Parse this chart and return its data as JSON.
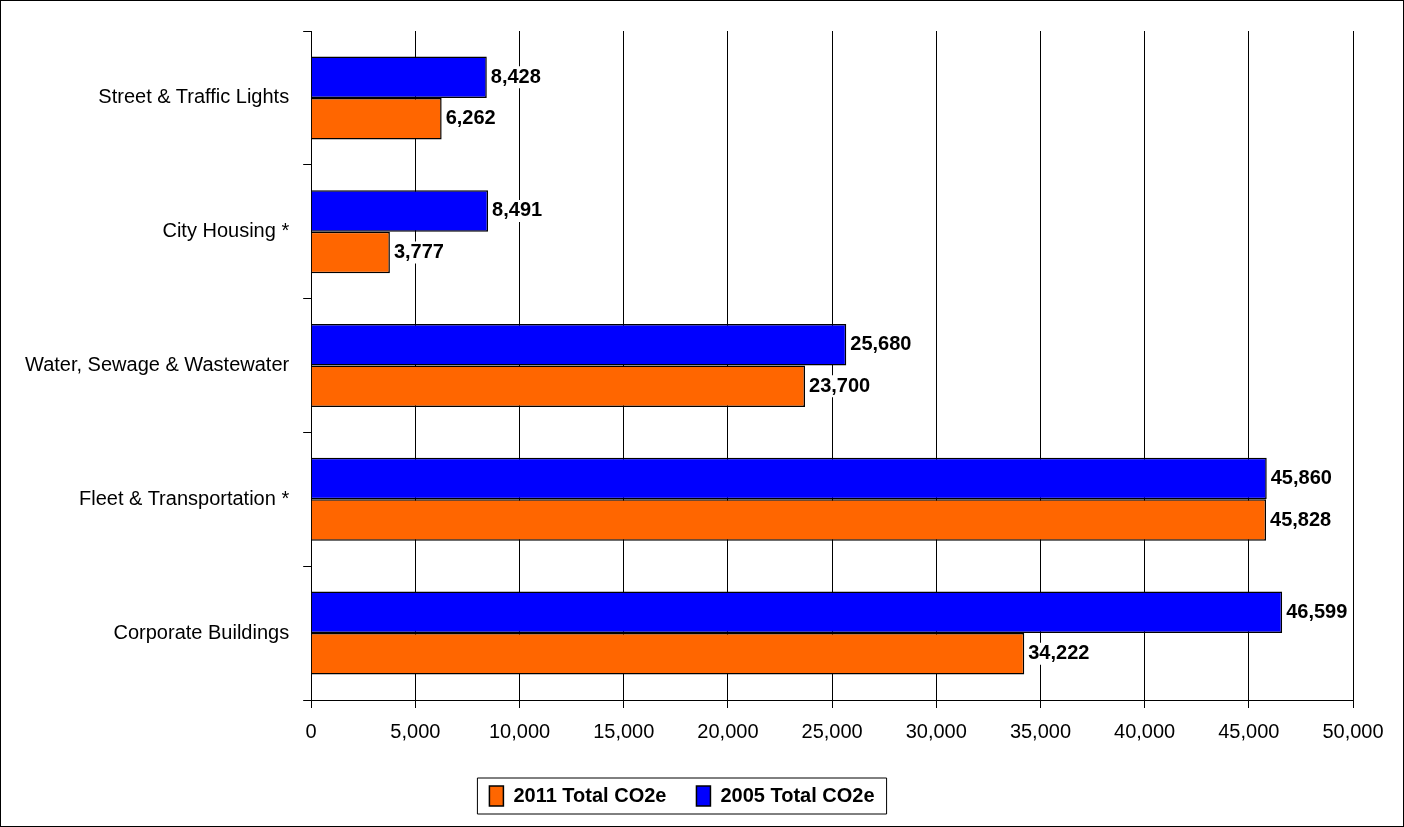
{
  "chart_data": {
    "type": "bar",
    "orientation": "horizontal",
    "categories": [
      "Street & Traffic Lights",
      "City Housing *",
      "Water, Sewage & Wastewater",
      "Fleet & Transportation *",
      "Corporate Buildings"
    ],
    "series": [
      {
        "name": "2011 Total CO2e",
        "color": "#ff6600",
        "values": [
          6262,
          3777,
          23700,
          45828,
          34222
        ],
        "value_labels": [
          "6,262",
          "3,777",
          "23,700",
          "45,828",
          "34,222"
        ]
      },
      {
        "name": "2005 Total CO2e",
        "color": "#0000ff",
        "values": [
          8428,
          8491,
          25680,
          45860,
          46599
        ],
        "value_labels": [
          "8,428",
          "8,491",
          "25,680",
          "45,860",
          "46,599"
        ]
      }
    ],
    "xlim": [
      0,
      50000
    ],
    "xticks": [
      {
        "value": 0,
        "label": "0"
      },
      {
        "value": 5000,
        "label": "5,000"
      },
      {
        "value": 10000,
        "label": "10,000"
      },
      {
        "value": 15000,
        "label": "15,000"
      },
      {
        "value": 20000,
        "label": "20,000"
      },
      {
        "value": 25000,
        "label": "25,000"
      },
      {
        "value": 30000,
        "label": "30,000"
      },
      {
        "value": 35000,
        "label": "35,000"
      },
      {
        "value": 40000,
        "label": "40,000"
      },
      {
        "value": 45000,
        "label": "45,000"
      },
      {
        "value": 50000,
        "label": "50,000"
      }
    ],
    "grid": "x",
    "legend": "bottom"
  }
}
